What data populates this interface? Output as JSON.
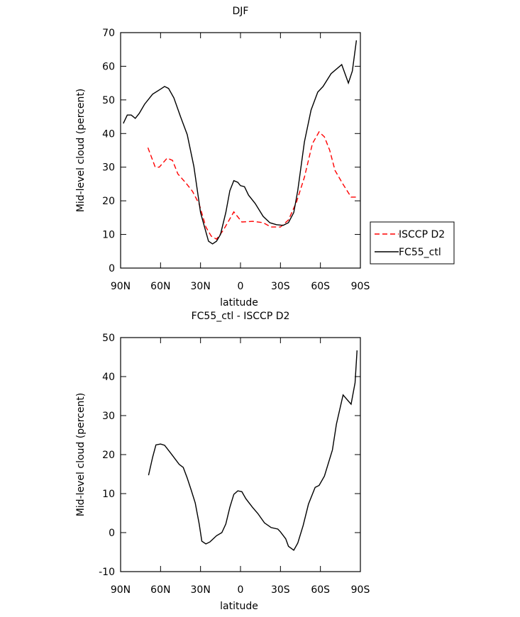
{
  "chart_data": [
    {
      "type": "line",
      "title": "DJF",
      "xlabel": "latitude",
      "ylabel": "Mid-level cloud (percent)",
      "xlim": [
        90,
        -90
      ],
      "xticks": [
        {
          "value": 90,
          "label": "90N"
        },
        {
          "value": 60,
          "label": "60N"
        },
        {
          "value": 30,
          "label": "30N"
        },
        0,
        {
          "value": -30,
          "label": "30S"
        },
        {
          "value": -60,
          "label": "60S"
        },
        {
          "value": -90,
          "label": "90S"
        }
      ],
      "ylim": [
        0,
        70
      ],
      "yticks": [
        0,
        10,
        20,
        30,
        40,
        50,
        60,
        70
      ],
      "legend": "right",
      "series": [
        {
          "name": "ISCCP D2",
          "color": "#ff0000",
          "dash": true,
          "x": [
            69.5,
            64,
            61,
            55,
            51,
            47,
            41,
            36,
            31,
            26,
            22,
            18,
            13,
            5,
            -1,
            -9,
            -17,
            -23,
            -30,
            -36,
            -42,
            -48,
            -54,
            -59,
            -63,
            -67,
            -71,
            -77,
            -83,
            -87
          ],
          "values": [
            35.8,
            30,
            30,
            32.7,
            32,
            28,
            25.3,
            22.8,
            19,
            12.2,
            9.5,
            8.6,
            11.2,
            16.7,
            13.7,
            13.9,
            13.5,
            12.2,
            12.2,
            14.3,
            19.6,
            27,
            37,
            40.5,
            39,
            35,
            29,
            24.9,
            21.1,
            21.1
          ]
        },
        {
          "name": "FC55_ctl",
          "color": "#000000",
          "dash": false,
          "x": [
            88,
            85,
            82,
            79,
            76,
            72,
            66,
            60,
            57,
            54,
            50,
            45,
            40,
            35,
            30,
            27,
            24,
            21,
            18,
            15,
            11,
            8,
            5,
            2,
            0,
            -3,
            -6,
            -11,
            -17,
            -22,
            -27,
            -32,
            -36,
            -40,
            -43,
            -48,
            -53,
            -58,
            -62,
            -68,
            -76,
            -81,
            -84,
            -87
          ],
          "values": [
            43,
            45.5,
            45.5,
            44.5,
            46,
            48.7,
            51.7,
            53.2,
            54,
            53.4,
            50.6,
            45,
            39.7,
            30.2,
            16.5,
            12.2,
            8,
            7.2,
            8,
            10,
            16.5,
            23,
            26,
            25.5,
            24.5,
            24.2,
            21.7,
            19.2,
            15.4,
            13.5,
            12.9,
            12.7,
            13.5,
            16.5,
            23,
            37.5,
            47,
            52.3,
            54,
            57.8,
            60.5,
            55,
            58.6,
            67.7
          ]
        }
      ]
    },
    {
      "type": "line",
      "title": "FC55_ctl - ISCCP D2",
      "xlabel": "latitude",
      "ylabel": "Mid-level cloud (percent)",
      "xlim": [
        90,
        -90
      ],
      "xticks": [
        {
          "value": 90,
          "label": "90N"
        },
        {
          "value": 60,
          "label": "60N"
        },
        {
          "value": 30,
          "label": "30N"
        },
        0,
        {
          "value": -30,
          "label": "30S"
        },
        {
          "value": -60,
          "label": "60S"
        },
        {
          "value": -90,
          "label": "90S"
        }
      ],
      "ylim": [
        -10,
        50
      ],
      "yticks": [
        -10,
        0,
        10,
        20,
        30,
        40,
        50
      ],
      "series": [
        {
          "color": "#000000",
          "dash": false,
          "x": [
            69,
            66,
            63.5,
            60,
            57,
            52,
            46,
            43,
            40,
            37,
            34,
            31,
            29,
            26,
            23,
            18,
            14,
            11,
            8,
            5,
            2,
            -1,
            -4,
            -9,
            -13,
            -18,
            -23,
            -28,
            -30,
            -34,
            -36,
            -40,
            -43,
            -47,
            -51,
            -56,
            -59,
            -63,
            -69,
            -72,
            -77,
            -83,
            -86,
            -87.5
          ],
          "values": [
            14.7,
            19.3,
            22.5,
            22.7,
            22.4,
            20.2,
            17.5,
            16.7,
            14,
            10.9,
            7.6,
            2.2,
            -2.2,
            -2.9,
            -2.4,
            -0.8,
            0,
            2.2,
            6.5,
            9.8,
            10.7,
            10.5,
            8.7,
            6.5,
            4.9,
            2.5,
            1.3,
            0.9,
            0.2,
            -1.6,
            -3.5,
            -4.5,
            -2.7,
            1.8,
            7.3,
            11.6,
            12.1,
            14.5,
            21.2,
            27.8,
            35.3,
            32.9,
            38.4,
            46.7
          ]
        }
      ]
    }
  ]
}
